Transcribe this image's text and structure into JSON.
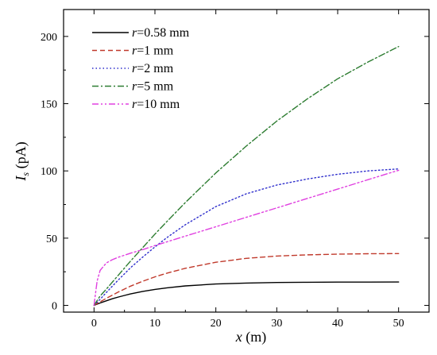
{
  "chart_data": {
    "type": "line",
    "title": "",
    "xlabel": {
      "var": "x",
      "unit": " (m)"
    },
    "ylabel": {
      "var": "I",
      "sub": "s",
      "unit": " (pA)"
    },
    "xlim": [
      -5,
      55
    ],
    "ylim": [
      -5,
      220
    ],
    "xticks": [
      0,
      10,
      20,
      30,
      40,
      50
    ],
    "yticks": [
      0,
      50,
      100,
      150,
      200
    ],
    "grid": false,
    "legend_position": "top-left",
    "series": [
      {
        "name": "r=0.58 mm",
        "legend_var": "r",
        "legend_rest": "=0.58 mm",
        "color": "#000000",
        "dash": "solid",
        "x": [
          0,
          1,
          2,
          3,
          4,
          5,
          6,
          8,
          10,
          12,
          15,
          20,
          25,
          30,
          35,
          40,
          45,
          50
        ],
        "y": [
          0,
          1.8,
          3.4,
          4.9,
          6.2,
          7.4,
          8.5,
          10.4,
          11.9,
          13.1,
          14.5,
          15.9,
          16.6,
          17.0,
          17.2,
          17.3,
          17.35,
          17.4
        ]
      },
      {
        "name": "r=1 mm",
        "legend_var": "r",
        "legend_rest": "=1 mm",
        "color": "#c0392b",
        "dash": "dashed",
        "x": [
          0,
          1,
          2,
          4,
          6,
          8,
          10,
          12,
          15,
          20,
          25,
          30,
          35,
          40,
          45,
          50
        ],
        "y": [
          0,
          2.6,
          5.2,
          10.0,
          14.3,
          18.0,
          21.2,
          24.0,
          27.6,
          32.1,
          35.0,
          36.7,
          37.6,
          38.1,
          38.4,
          38.5
        ]
      },
      {
        "name": "r=2 mm",
        "legend_var": "r",
        "legend_rest": "=2 mm",
        "color": "#2e2ecc",
        "dash": "dotted",
        "x": [
          0,
          1,
          2,
          4,
          6,
          8,
          10,
          12,
          15,
          20,
          25,
          30,
          35,
          40,
          45,
          50
        ],
        "y": [
          0,
          4.5,
          9.5,
          19.0,
          28.0,
          36.0,
          43.5,
          50.5,
          60.0,
          73.5,
          83.0,
          89.5,
          94.0,
          97.5,
          100.0,
          101.5
        ]
      },
      {
        "name": "r=5 mm",
        "legend_var": "r",
        "legend_rest": "=5 mm",
        "color": "#2e7d32",
        "dash": "dashdot",
        "x": [
          0,
          1,
          2,
          4,
          6,
          8,
          10,
          12,
          15,
          20,
          25,
          30,
          35,
          40,
          45,
          50
        ],
        "y": [
          0,
          7.0,
          12.0,
          22.5,
          33.0,
          43.0,
          53.0,
          62.5,
          76.5,
          98.5,
          118.5,
          137.0,
          153.5,
          168.5,
          181.0,
          192.5
        ]
      },
      {
        "name": "r=10 mm",
        "legend_var": "r",
        "legend_rest": "=10 mm",
        "color": "#e040e0",
        "dash": "dashdotdot",
        "x": [
          0,
          0.5,
          1,
          2,
          3,
          4,
          6,
          8,
          10,
          15,
          20,
          25,
          30,
          35,
          40,
          45,
          50
        ],
        "y": [
          0,
          18.0,
          26.0,
          31.5,
          34.0,
          35.8,
          38.8,
          41.5,
          44.5,
          51.5,
          58.5,
          65.5,
          72.5,
          79.5,
          86.5,
          93.5,
          100.5
        ]
      }
    ]
  }
}
